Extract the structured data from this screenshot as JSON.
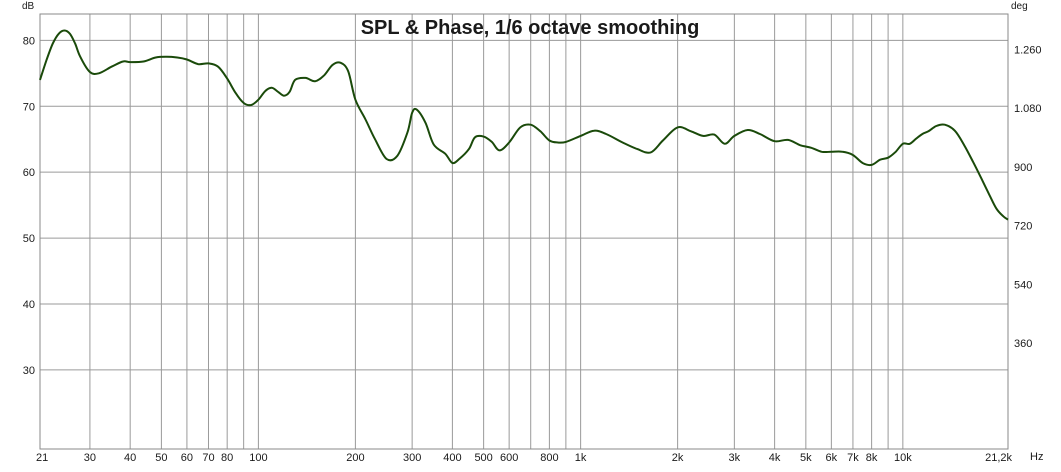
{
  "chart_data": {
    "type": "line",
    "title": "SPL & Phase, 1/6 octave smoothing",
    "ylabel_left": "dB",
    "ylabel_right": "deg",
    "xlabel": "Hz",
    "x_scale": "log",
    "xlim": [
      21,
      21200
    ],
    "ylim_left": [
      18,
      84
    ],
    "ylim_right": [
      36,
      1368
    ],
    "grid": true,
    "x_ticks": [
      {
        "value": 21,
        "label": "21"
      },
      {
        "value": 30,
        "label": "30"
      },
      {
        "value": 40,
        "label": "40"
      },
      {
        "value": 50,
        "label": "50"
      },
      {
        "value": 60,
        "label": "60"
      },
      {
        "value": 70,
        "label": "70"
      },
      {
        "value": 80,
        "label": "80"
      },
      {
        "value": 100,
        "label": "100"
      },
      {
        "value": 200,
        "label": "200"
      },
      {
        "value": 300,
        "label": "300"
      },
      {
        "value": 400,
        "label": "400"
      },
      {
        "value": 500,
        "label": "500"
      },
      {
        "value": 600,
        "label": "600"
      },
      {
        "value": 800,
        "label": "800"
      },
      {
        "value": 1000,
        "label": "1k"
      },
      {
        "value": 2000,
        "label": "2k"
      },
      {
        "value": 3000,
        "label": "3k"
      },
      {
        "value": 4000,
        "label": "4k"
      },
      {
        "value": 5000,
        "label": "5k"
      },
      {
        "value": 6000,
        "label": "6k"
      },
      {
        "value": 7000,
        "label": "7k"
      },
      {
        "value": 8000,
        "label": "8k"
      },
      {
        "value": 10000,
        "label": "10k"
      },
      {
        "value": 21200,
        "label": "21,2k"
      }
    ],
    "x_minor_grid": [
      90,
      700,
      900,
      9000
    ],
    "y_left_ticks": [
      30,
      40,
      50,
      60,
      70,
      80
    ],
    "y_right_ticks": [
      {
        "value": 360,
        "label": "360"
      },
      {
        "value": 540,
        "label": "540"
      },
      {
        "value": 720,
        "label": "720"
      },
      {
        "value": 900,
        "label": "900"
      },
      {
        "value": 1080,
        "label": "1.080"
      },
      {
        "value": 1260,
        "label": "1.260"
      }
    ],
    "series": [
      {
        "color": "#1a4a0a",
        "x": [
          21,
          22,
          23,
          24,
          25,
          26,
          27,
          28,
          30,
          32,
          35,
          38,
          40,
          44,
          48,
          52,
          56,
          60,
          65,
          70,
          75,
          80,
          85,
          90,
          95,
          100,
          105,
          110,
          115,
          120,
          125,
          130,
          140,
          150,
          160,
          170,
          180,
          190,
          200,
          215,
          230,
          250,
          270,
          290,
          300,
          310,
          330,
          350,
          380,
          400,
          420,
          450,
          470,
          500,
          530,
          560,
          600,
          650,
          700,
          750,
          800,
          850,
          900,
          1000,
          1100,
          1200,
          1350,
          1500,
          1650,
          1800,
          2000,
          2200,
          2400,
          2600,
          2800,
          3000,
          3300,
          3600,
          4000,
          4400,
          4800,
          5200,
          5600,
          6000,
          6500,
          7000,
          7500,
          8000,
          8500,
          9000,
          9500,
          10000,
          10500,
          11000,
          11500,
          12000,
          12700,
          13500,
          14500,
          15500,
          16500,
          17500,
          18500,
          19500,
          20500,
          21200
        ],
        "y": [
          74,
          77,
          79.5,
          81,
          81.5,
          81,
          79.5,
          77.5,
          75.2,
          75,
          76,
          76.8,
          76.7,
          76.8,
          77.4,
          77.5,
          77.4,
          77.1,
          76.4,
          76.5,
          76,
          74.2,
          72,
          70.5,
          70.2,
          71,
          72.3,
          72.8,
          72.2,
          71.6,
          72.2,
          74,
          74.3,
          73.8,
          74.7,
          76.3,
          76.6,
          75.3,
          71,
          68,
          65,
          62,
          62.5,
          66,
          69,
          69.5,
          67.5,
          64.2,
          62.8,
          61.4,
          62,
          63.5,
          65.3,
          65.4,
          64.6,
          63.3,
          64.5,
          66.8,
          67.2,
          66.2,
          64.8,
          64.5,
          64.6,
          65.5,
          66.3,
          65.8,
          64.5,
          63.5,
          63,
          64.8,
          66.8,
          66.2,
          65.5,
          65.7,
          64.3,
          65.5,
          66.4,
          65.8,
          64.7,
          64.9,
          64.1,
          63.7,
          63.1,
          63.1,
          63.1,
          62.6,
          61.4,
          61.1,
          61.9,
          62.2,
          63.1,
          64.3,
          64.3,
          65.1,
          65.8,
          66.2,
          67,
          67.2,
          66.3,
          64.1,
          61.6,
          59.1,
          56.7,
          54.5,
          53.3,
          52.8
        ]
      }
    ]
  }
}
